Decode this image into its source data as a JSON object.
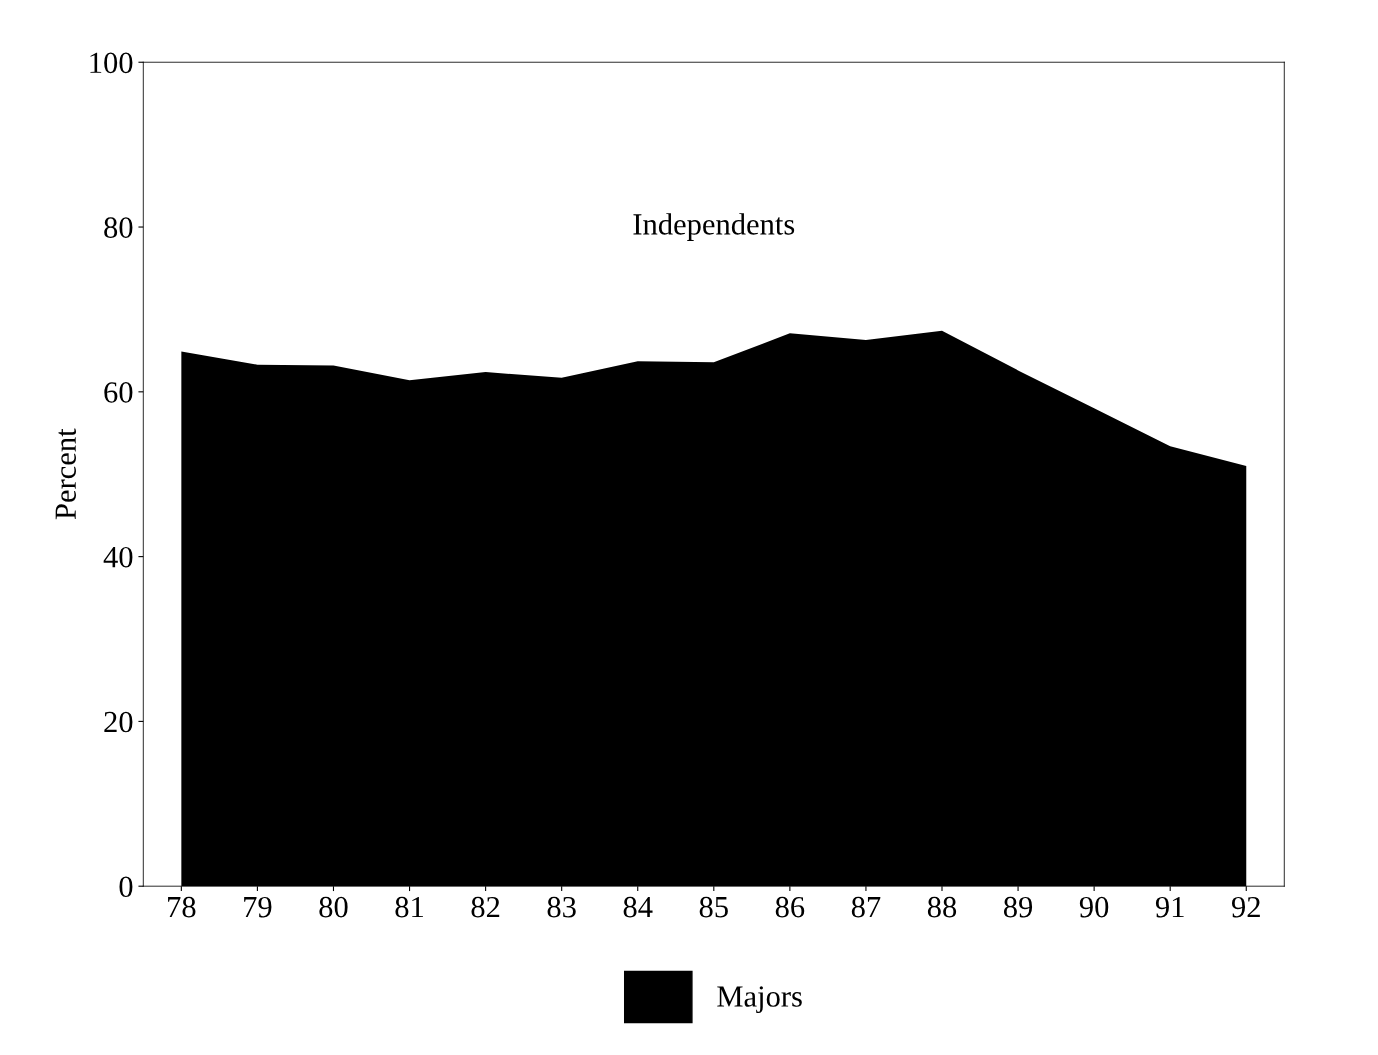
{
  "chart_data": {
    "type": "area",
    "ylabel": "Percent",
    "categories": [
      "78",
      "79",
      "80",
      "81",
      "82",
      "83",
      "84",
      "85",
      "86",
      "87",
      "88",
      "89",
      "90",
      "91",
      "92"
    ],
    "series": [
      {
        "name": "Majors",
        "color": "#000000",
        "values": [
          64.9,
          63.3,
          63.2,
          61.4,
          62.4,
          61.7,
          63.7,
          63.6,
          67.1,
          66.3,
          67.4,
          62.6,
          58.0,
          53.4,
          51.0
        ]
      }
    ],
    "annotations": [
      "Independents"
    ],
    "ylim": [
      0,
      100
    ],
    "yticks": [
      0,
      20,
      40,
      60,
      80,
      100
    ],
    "grid": false,
    "legend": "bottom"
  }
}
